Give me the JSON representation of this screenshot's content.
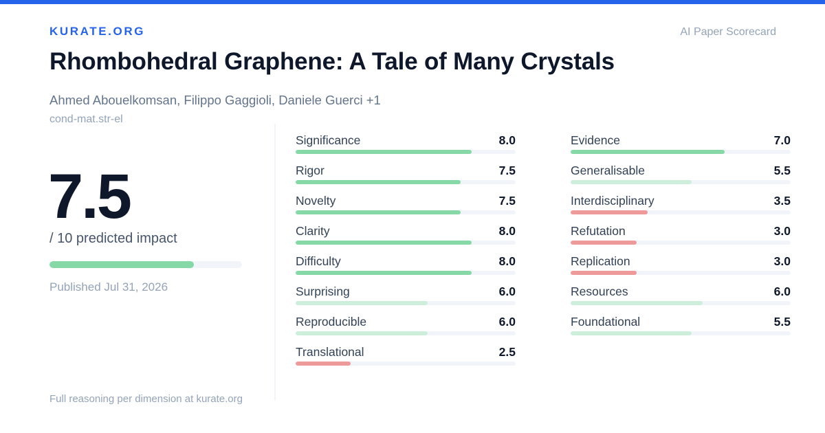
{
  "brand": "KURATE.ORG",
  "scorecard_label": "AI Paper Scorecard",
  "title": "Rhombohedral Graphene: A Tale of Many Crystals",
  "authors": "Ahmed Abouelkomsan, Filippo Gaggioli, Daniele Guerci +1",
  "category": "cond-mat.str-el",
  "score": "7.5",
  "score_max": 10,
  "score_subtitle": "/ 10 predicted impact",
  "published": "Published Jul 31, 2026",
  "footer": "Full reasoning per dimension at kurate.org",
  "colors": {
    "accent": "#2563eb",
    "high": "#86d9a6",
    "medium": "#cdeedb",
    "low": "#ef9a9a",
    "track": "#f1f5f9"
  },
  "metrics_left": [
    {
      "label": "Significance",
      "value": "8.0",
      "level": "high"
    },
    {
      "label": "Rigor",
      "value": "7.5",
      "level": "high"
    },
    {
      "label": "Novelty",
      "value": "7.5",
      "level": "high"
    },
    {
      "label": "Clarity",
      "value": "8.0",
      "level": "high"
    },
    {
      "label": "Difficulty",
      "value": "8.0",
      "level": "high"
    },
    {
      "label": "Surprising",
      "value": "6.0",
      "level": "medium"
    },
    {
      "label": "Reproducible",
      "value": "6.0",
      "level": "medium"
    },
    {
      "label": "Translational",
      "value": "2.5",
      "level": "low"
    }
  ],
  "metrics_right": [
    {
      "label": "Evidence",
      "value": "7.0",
      "level": "high"
    },
    {
      "label": "Generalisable",
      "value": "5.5",
      "level": "medium"
    },
    {
      "label": "Interdisciplinary",
      "value": "3.5",
      "level": "low"
    },
    {
      "label": "Refutation",
      "value": "3.0",
      "level": "low"
    },
    {
      "label": "Replication",
      "value": "3.0",
      "level": "low"
    },
    {
      "label": "Resources",
      "value": "6.0",
      "level": "medium"
    },
    {
      "label": "Foundational",
      "value": "5.5",
      "level": "medium"
    }
  ]
}
